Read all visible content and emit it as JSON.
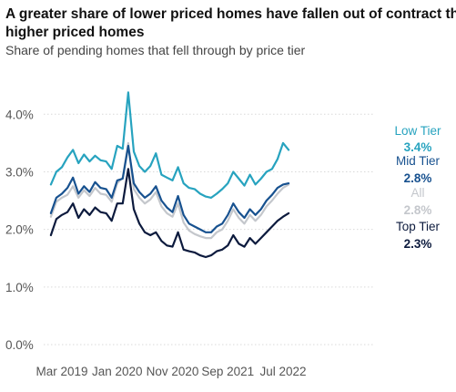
{
  "chart_data": {
    "type": "line",
    "title": "A greater share of lower priced homes have fallen out of contract than higher priced homes",
    "subtitle": "Share of pending homes that fell through by price tier",
    "xlabel": "",
    "ylabel": "",
    "ylim": [
      0,
      4.4
    ],
    "yticks": [
      0,
      1,
      2,
      3,
      4
    ],
    "ytick_labels": [
      "0.0%",
      "1.0%",
      "2.0%",
      "3.0%",
      "4.0%"
    ],
    "xticks": [
      "2019-03",
      "2020-01",
      "2020-11",
      "2021-09",
      "2022-07"
    ],
    "xtick_labels": [
      "Mar 2019",
      "Jan 2020",
      "Nov 2020",
      "Sep 2021",
      "Jul 2022"
    ],
    "grid": "horizontal",
    "legend": "none (labels at line ends)",
    "series": [
      {
        "name": "Low Tier",
        "end_label": "3.4%",
        "color": "#27a3bf",
        "points": [
          [
            "2019-01",
            2.78
          ],
          [
            "2019-02",
            3.0
          ],
          [
            "2019-03",
            3.08
          ],
          [
            "2019-04",
            3.25
          ],
          [
            "2019-05",
            3.38
          ],
          [
            "2019-06",
            3.15
          ],
          [
            "2019-07",
            3.3
          ],
          [
            "2019-08",
            3.18
          ],
          [
            "2019-09",
            3.28
          ],
          [
            "2019-10",
            3.2
          ],
          [
            "2019-11",
            3.18
          ],
          [
            "2019-12",
            3.05
          ],
          [
            "2020-01",
            3.45
          ],
          [
            "2020-02",
            3.4
          ],
          [
            "2020-03",
            4.38
          ],
          [
            "2020-04",
            3.35
          ],
          [
            "2020-05",
            3.1
          ],
          [
            "2020-06",
            3.0
          ],
          [
            "2020-07",
            3.1
          ],
          [
            "2020-08",
            3.32
          ],
          [
            "2020-09",
            2.95
          ],
          [
            "2020-10",
            2.9
          ],
          [
            "2020-11",
            2.85
          ],
          [
            "2020-12",
            3.08
          ],
          [
            "2021-01",
            2.8
          ],
          [
            "2021-02",
            2.72
          ],
          [
            "2021-03",
            2.7
          ],
          [
            "2021-04",
            2.62
          ],
          [
            "2021-05",
            2.57
          ],
          [
            "2021-06",
            2.55
          ],
          [
            "2021-07",
            2.62
          ],
          [
            "2021-08",
            2.7
          ],
          [
            "2021-09",
            2.8
          ],
          [
            "2021-10",
            3.0
          ],
          [
            "2021-11",
            2.88
          ],
          [
            "2021-12",
            2.76
          ],
          [
            "2022-01",
            2.95
          ],
          [
            "2022-02",
            2.78
          ],
          [
            "2022-03",
            2.88
          ],
          [
            "2022-04",
            3.0
          ],
          [
            "2022-05",
            3.05
          ],
          [
            "2022-06",
            3.22
          ],
          [
            "2022-07",
            3.5
          ],
          [
            "2022-08",
            3.38
          ]
        ]
      },
      {
        "name": "Mid Tier",
        "end_label": "2.8%",
        "color": "#17518f",
        "points": [
          [
            "2019-01",
            2.28
          ],
          [
            "2019-02",
            2.55
          ],
          [
            "2019-03",
            2.62
          ],
          [
            "2019-04",
            2.72
          ],
          [
            "2019-05",
            2.9
          ],
          [
            "2019-06",
            2.62
          ],
          [
            "2019-07",
            2.75
          ],
          [
            "2019-08",
            2.65
          ],
          [
            "2019-09",
            2.82
          ],
          [
            "2019-10",
            2.72
          ],
          [
            "2019-11",
            2.7
          ],
          [
            "2019-12",
            2.55
          ],
          [
            "2020-01",
            2.85
          ],
          [
            "2020-02",
            2.88
          ],
          [
            "2020-03",
            3.45
          ],
          [
            "2020-04",
            2.8
          ],
          [
            "2020-05",
            2.65
          ],
          [
            "2020-06",
            2.55
          ],
          [
            "2020-07",
            2.62
          ],
          [
            "2020-08",
            2.75
          ],
          [
            "2020-09",
            2.5
          ],
          [
            "2020-10",
            2.38
          ],
          [
            "2020-11",
            2.3
          ],
          [
            "2020-12",
            2.58
          ],
          [
            "2021-01",
            2.25
          ],
          [
            "2021-02",
            2.1
          ],
          [
            "2021-03",
            2.05
          ],
          [
            "2021-04",
            2.0
          ],
          [
            "2021-05",
            1.95
          ],
          [
            "2021-06",
            1.95
          ],
          [
            "2021-07",
            2.05
          ],
          [
            "2021-08",
            2.1
          ],
          [
            "2021-09",
            2.25
          ],
          [
            "2021-10",
            2.45
          ],
          [
            "2021-11",
            2.3
          ],
          [
            "2021-12",
            2.2
          ],
          [
            "2022-01",
            2.35
          ],
          [
            "2022-02",
            2.25
          ],
          [
            "2022-03",
            2.35
          ],
          [
            "2022-04",
            2.5
          ],
          [
            "2022-05",
            2.6
          ],
          [
            "2022-06",
            2.72
          ],
          [
            "2022-07",
            2.78
          ],
          [
            "2022-08",
            2.8
          ]
        ]
      },
      {
        "name": "All",
        "end_label": "2.8%",
        "color": "#c4c7cc",
        "points": [
          [
            "2019-01",
            2.22
          ],
          [
            "2019-02",
            2.48
          ],
          [
            "2019-03",
            2.55
          ],
          [
            "2019-04",
            2.6
          ],
          [
            "2019-05",
            2.75
          ],
          [
            "2019-06",
            2.55
          ],
          [
            "2019-07",
            2.68
          ],
          [
            "2019-08",
            2.58
          ],
          [
            "2019-09",
            2.72
          ],
          [
            "2019-10",
            2.62
          ],
          [
            "2019-11",
            2.6
          ],
          [
            "2019-12",
            2.48
          ],
          [
            "2020-01",
            2.8
          ],
          [
            "2020-02",
            2.9
          ],
          [
            "2020-03",
            3.5
          ],
          [
            "2020-04",
            2.7
          ],
          [
            "2020-05",
            2.55
          ],
          [
            "2020-06",
            2.45
          ],
          [
            "2020-07",
            2.52
          ],
          [
            "2020-08",
            2.65
          ],
          [
            "2020-09",
            2.4
          ],
          [
            "2020-10",
            2.28
          ],
          [
            "2020-11",
            2.22
          ],
          [
            "2020-12",
            2.45
          ],
          [
            "2021-01",
            2.12
          ],
          [
            "2021-02",
            1.98
          ],
          [
            "2021-03",
            1.92
          ],
          [
            "2021-04",
            1.88
          ],
          [
            "2021-05",
            1.85
          ],
          [
            "2021-06",
            1.85
          ],
          [
            "2021-07",
            1.95
          ],
          [
            "2021-08",
            2.0
          ],
          [
            "2021-09",
            2.15
          ],
          [
            "2021-10",
            2.35
          ],
          [
            "2021-11",
            2.2
          ],
          [
            "2021-12",
            2.1
          ],
          [
            "2022-01",
            2.25
          ],
          [
            "2022-02",
            2.15
          ],
          [
            "2022-03",
            2.25
          ],
          [
            "2022-04",
            2.4
          ],
          [
            "2022-05",
            2.5
          ],
          [
            "2022-06",
            2.62
          ],
          [
            "2022-07",
            2.72
          ],
          [
            "2022-08",
            2.78
          ]
        ]
      },
      {
        "name": "Top Tier",
        "end_label": "2.3%",
        "color": "#0c1a3d",
        "points": [
          [
            "2019-01",
            1.9
          ],
          [
            "2019-02",
            2.18
          ],
          [
            "2019-03",
            2.25
          ],
          [
            "2019-04",
            2.3
          ],
          [
            "2019-05",
            2.45
          ],
          [
            "2019-06",
            2.2
          ],
          [
            "2019-07",
            2.35
          ],
          [
            "2019-08",
            2.25
          ],
          [
            "2019-09",
            2.38
          ],
          [
            "2019-10",
            2.3
          ],
          [
            "2019-11",
            2.28
          ],
          [
            "2019-12",
            2.15
          ],
          [
            "2020-01",
            2.45
          ],
          [
            "2020-02",
            2.45
          ],
          [
            "2020-03",
            3.05
          ],
          [
            "2020-04",
            2.35
          ],
          [
            "2020-05",
            2.1
          ],
          [
            "2020-06",
            1.95
          ],
          [
            "2020-07",
            1.9
          ],
          [
            "2020-08",
            1.95
          ],
          [
            "2020-09",
            1.8
          ],
          [
            "2020-10",
            1.72
          ],
          [
            "2020-11",
            1.7
          ],
          [
            "2020-12",
            1.95
          ],
          [
            "2021-01",
            1.65
          ],
          [
            "2021-02",
            1.62
          ],
          [
            "2021-03",
            1.6
          ],
          [
            "2021-04",
            1.55
          ],
          [
            "2021-05",
            1.52
          ],
          [
            "2021-06",
            1.55
          ],
          [
            "2021-07",
            1.62
          ],
          [
            "2021-08",
            1.65
          ],
          [
            "2021-09",
            1.72
          ],
          [
            "2021-10",
            1.9
          ],
          [
            "2021-11",
            1.75
          ],
          [
            "2021-12",
            1.7
          ],
          [
            "2022-01",
            1.85
          ],
          [
            "2022-02",
            1.75
          ],
          [
            "2022-03",
            1.85
          ],
          [
            "2022-04",
            1.95
          ],
          [
            "2022-05",
            2.05
          ],
          [
            "2022-06",
            2.15
          ],
          [
            "2022-07",
            2.22
          ],
          [
            "2022-08",
            2.28
          ]
        ]
      }
    ]
  }
}
